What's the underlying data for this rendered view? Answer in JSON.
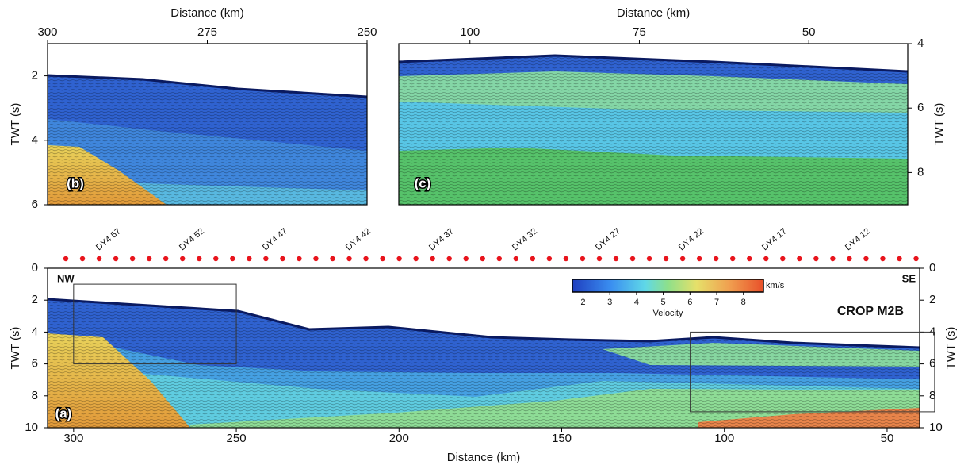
{
  "figure": {
    "panels": [
      {
        "label": "(b)",
        "xlabel": "Distance (km)",
        "ylabel": "TWT (s)",
        "xlim": [
          300,
          250
        ],
        "ylim": [
          1,
          6
        ],
        "y_inverted": true,
        "xticks": [
          300,
          275,
          250
        ],
        "yticks": [
          2,
          4,
          6
        ],
        "x_axis": "top",
        "y_axis": [
          "left"
        ]
      },
      {
        "label": "(c)",
        "xlabel": "Distance (km)",
        "ylabel": "TWT (s)",
        "xlim": [
          110.5,
          35.4
        ],
        "ylim": [
          4,
          9
        ],
        "y_inverted": true,
        "xticks": [
          100,
          75,
          50
        ],
        "yticks": [
          4,
          6,
          8
        ],
        "x_axis": "top",
        "y_axis": [
          "right"
        ]
      },
      {
        "label": "(a)",
        "xlabel": "Distance (km)",
        "ylabel": "TWT (s)",
        "xlim": [
          308,
          40
        ],
        "ylim": [
          0,
          10
        ],
        "y_inverted": true,
        "xticks": [
          300,
          250,
          200,
          150,
          100,
          50
        ],
        "yticks": [
          0,
          2,
          4,
          6,
          8,
          10
        ],
        "x_axis": "bottom",
        "y_axis": [
          "left",
          "right"
        ],
        "corner_labels": [
          "NW",
          "SE"
        ],
        "profile_name": "CROP M2B",
        "shot_labels": [
          "DY4 57",
          "DY4 52",
          "DY4 47",
          "DY4 42",
          "DY4 37",
          "DY4 32",
          "DY4 27",
          "DY4 22",
          "DY4 17",
          "DY4 12"
        ],
        "colorbar": {
          "title": "Velocity",
          "unit": "km/s",
          "clim": [
            1.6,
            8.75
          ],
          "ticks": [
            2,
            3,
            4,
            5,
            6,
            7,
            8
          ]
        }
      }
    ]
  }
}
